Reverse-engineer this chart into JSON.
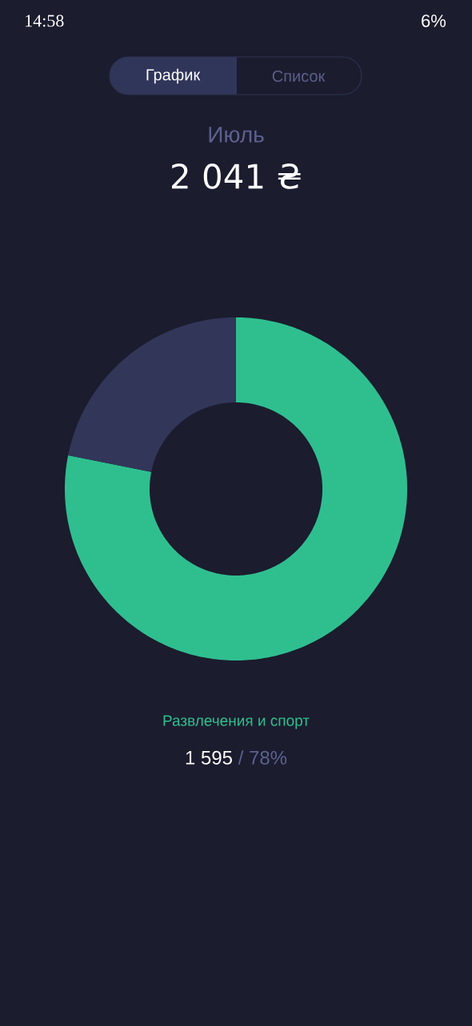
{
  "chart_data": {
    "type": "donut",
    "title": "Июль",
    "subtitle": "2 041 ₴",
    "categories": [
      "Развлечения и спорт",
      null
    ],
    "values": [
      1595,
      446
    ],
    "colors": [
      "#2fbf8f",
      "#323659"
    ],
    "value_labels": [
      "1 595",
      null
    ],
    "annotations": [
      "14:58",
      "6%",
      "График",
      "Список",
      "/ 78%"
    ]
  }
}
